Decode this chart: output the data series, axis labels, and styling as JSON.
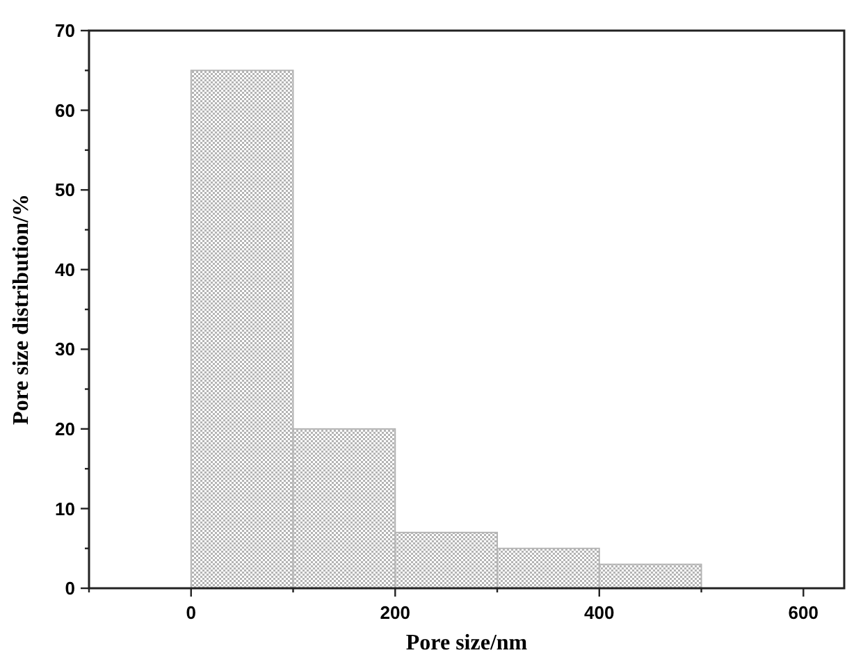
{
  "chart_data": {
    "type": "histogram",
    "xlabel": "Pore size/nm",
    "ylabel": "Pore size distribution/%",
    "bins": [
      0,
      100,
      200,
      300,
      400,
      500
    ],
    "values": [
      65,
      20,
      7,
      5,
      3
    ],
    "color": "#b4b4b4",
    "xlim": [
      -100,
      640
    ],
    "xticks": [
      {
        "value": -100,
        "label": null
      },
      0,
      {
        "value": 100,
        "label": null
      },
      200,
      {
        "value": 300,
        "label": null
      },
      400,
      {
        "value": 500,
        "label": null
      },
      600
    ],
    "ylim": [
      0,
      70
    ],
    "yticks": [
      0,
      {
        "value": 5,
        "label": null
      },
      10,
      {
        "value": 15,
        "label": null
      },
      20,
      {
        "value": 25,
        "label": null
      },
      30,
      {
        "value": 35,
        "label": null
      },
      40,
      {
        "value": 45,
        "label": null
      },
      50,
      {
        "value": 55,
        "label": null
      },
      60,
      {
        "value": 65,
        "label": null
      },
      70
    ],
    "grid": false
  }
}
